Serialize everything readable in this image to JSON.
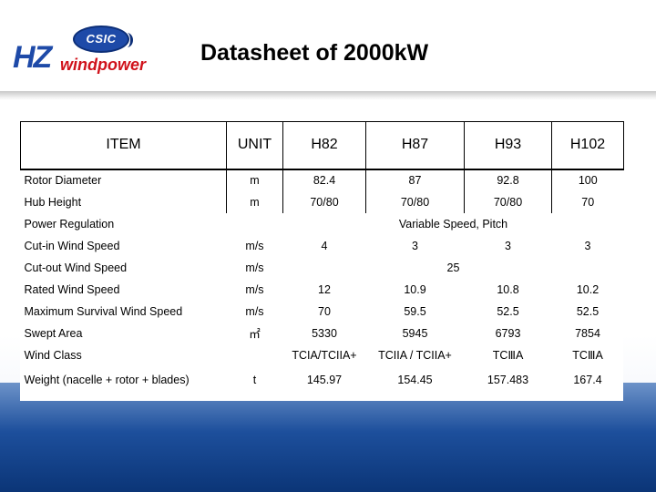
{
  "header": {
    "logo_mark": "CSIC",
    "logo_hz": "HZ",
    "logo_windpower": "windpower",
    "title": "Datasheet of 2000kW"
  },
  "table": {
    "columns": [
      "ITEM",
      "UNIT",
      "H82",
      "H87",
      "H93",
      "H102"
    ],
    "rows": [
      {
        "item": "Rotor Diameter",
        "unit": "m",
        "values": [
          "82.4",
          "87",
          "92.8",
          "100"
        ]
      },
      {
        "item": "Hub Height",
        "unit": "m",
        "values": [
          "70/80",
          "70/80",
          "70/80",
          "70"
        ]
      },
      {
        "item": "Power Regulation",
        "unit": "",
        "merged": "Variable Speed, Pitch"
      },
      {
        "item": "Cut-in Wind Speed",
        "unit": "m/s",
        "values": [
          "4",
          "3",
          "3",
          "3"
        ]
      },
      {
        "item": "Cut-out Wind Speed",
        "unit": "m/s",
        "merged": "25"
      },
      {
        "item": "Rated Wind Speed",
        "unit": "m/s",
        "values": [
          "12",
          "10.9",
          "10.8",
          "10.2"
        ]
      },
      {
        "item": "Maximum Survival Wind Speed",
        "unit": "m/s",
        "values": [
          "70",
          "59.5",
          "52.5",
          "52.5"
        ]
      },
      {
        "item": "Swept Area",
        "unit": "㎡",
        "values": [
          "5330",
          "5945",
          "6793",
          "7854"
        ]
      },
      {
        "item": "Wind Class",
        "unit": "",
        "values": [
          "TCIA/TCIIA+",
          "TCIIA / TCIIA+",
          "TCⅢA",
          "TCⅢA"
        ]
      },
      {
        "item": "Weight (nacelle + rotor + blades)",
        "unit": "t",
        "values": [
          "145.97",
          "154.45",
          "157.483",
          "167.4"
        ]
      }
    ]
  }
}
